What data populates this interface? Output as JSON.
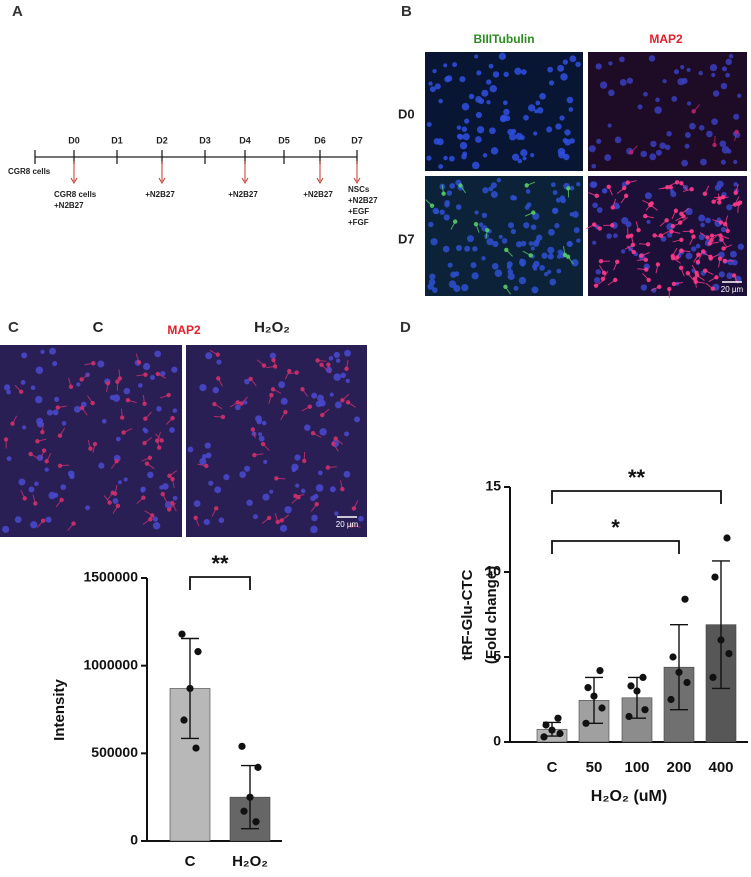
{
  "panel_labels": [
    "A",
    "B",
    "C",
    "D"
  ],
  "timeline": {
    "start_label": "CGR8 cells",
    "days": [
      "D0",
      "D1",
      "D2",
      "D3",
      "D4",
      "D5",
      "D6",
      "D7"
    ],
    "steps": [
      {
        "lines": [
          "CGR8 cells",
          "+N2B27"
        ]
      },
      {
        "lines": [
          "+N2B27"
        ]
      },
      {
        "lines": [
          "+N2B27"
        ]
      },
      {
        "lines": [
          "+N2B27"
        ]
      },
      {
        "lines": [
          "NSCs",
          "+N2B27",
          "+EGF",
          "+FGF"
        ]
      }
    ]
  },
  "microscopy_b": {
    "columns": [
      "BIIITubulin",
      "MAP2"
    ],
    "rows": [
      "D0",
      "D7"
    ],
    "scale_bar": "20 µm"
  },
  "microscopy_c": {
    "columns": [
      "C",
      "H₂O₂"
    ],
    "stain": "MAP2",
    "scale_bar": "20 µm"
  },
  "chart_data": [
    {
      "type": "bar",
      "ylabel": "Intensity",
      "categories": [
        "C",
        "H₂O₂"
      ],
      "values": [
        870000,
        250000
      ],
      "errors": [
        285000,
        180000
      ],
      "points": [
        [
          1180000,
          1080000,
          870000,
          690000,
          530000
        ],
        [
          540000,
          420000,
          250000,
          170000,
          110000
        ]
      ],
      "colors": [
        "#b8b8b8",
        "#666666"
      ],
      "ylim": [
        0,
        1500000
      ],
      "yticks": [
        0,
        500000,
        1000000,
        1500000
      ],
      "significance": [
        {
          "label": "**",
          "pair": [
            "C",
            "H₂O₂"
          ]
        }
      ]
    },
    {
      "type": "bar",
      "xlabel": "H₂O₂ (uM)",
      "ylabel": [
        "tRF-Glu-CTC",
        "(Fold change)"
      ],
      "categories": [
        "C",
        "50",
        "100",
        "200",
        "400"
      ],
      "values": [
        0.75,
        2.45,
        2.6,
        4.4,
        6.9
      ],
      "errors": [
        0.4,
        1.35,
        1.2,
        2.5,
        3.75
      ],
      "points": [
        [
          0.3,
          0.5,
          0.7,
          1.0,
          1.4
        ],
        [
          1.1,
          2.0,
          2.7,
          3.2,
          4.2
        ],
        [
          1.5,
          1.9,
          3.0,
          3.3,
          3.8
        ],
        [
          2.5,
          3.5,
          4.1,
          5.0,
          8.4
        ],
        [
          3.8,
          5.2,
          6.0,
          9.7,
          12.0
        ]
      ],
      "colors": [
        "#b5b5b5",
        "#a0a0a0",
        "#8c8c8c",
        "#707070",
        "#575757"
      ],
      "ylim": [
        0,
        15
      ],
      "yticks": [
        0,
        5,
        10,
        15
      ],
      "significance": [
        {
          "label": "*",
          "pair": [
            "C",
            "200"
          ]
        },
        {
          "label": "**",
          "pair": [
            "C",
            "400"
          ]
        }
      ]
    }
  ]
}
